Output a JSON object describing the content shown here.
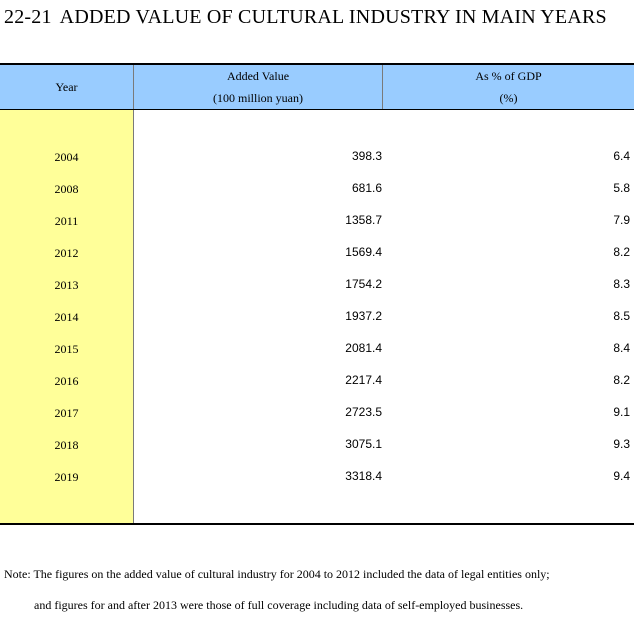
{
  "title": {
    "number": "22-21",
    "text": "ADDED VALUE OF CULTURAL INDUSTRY IN MAIN YEARS"
  },
  "header": {
    "year": "Year",
    "added_value": "Added Value",
    "added_value_unit": "(100 million yuan)",
    "gdp_share": "As % of GDP",
    "gdp_share_unit": "(%)"
  },
  "colors": {
    "header_bg": "#99ccff",
    "year_col_bg": "#ffff99"
  },
  "rows": [
    {
      "year": "2004",
      "added_value": "398.3",
      "gdp_share": "6.4"
    },
    {
      "year": "2008",
      "added_value": "681.6",
      "gdp_share": "5.8"
    },
    {
      "year": "2011",
      "added_value": "1358.7",
      "gdp_share": "7.9"
    },
    {
      "year": "2012",
      "added_value": "1569.4",
      "gdp_share": "8.2"
    },
    {
      "year": "2013",
      "added_value": "1754.2",
      "gdp_share": "8.3"
    },
    {
      "year": "2014",
      "added_value": "1937.2",
      "gdp_share": "8.5"
    },
    {
      "year": "2015",
      "added_value": "2081.4",
      "gdp_share": "8.4"
    },
    {
      "year": "2016",
      "added_value": "2217.4",
      "gdp_share": "8.2"
    },
    {
      "year": "2017",
      "added_value": "2723.5",
      "gdp_share": "9.1"
    },
    {
      "year": "2018",
      "added_value": "3075.1",
      "gdp_share": "9.3"
    },
    {
      "year": "2019",
      "added_value": "3318.4",
      "gdp_share": "9.4"
    }
  ],
  "note": {
    "line1": "Note: The figures on the added value of cultural industry for 2004 to 2012 included the data of legal entities only;",
    "line2": "and figures for and after 2013 were those of full coverage including data of self-employed businesses."
  }
}
